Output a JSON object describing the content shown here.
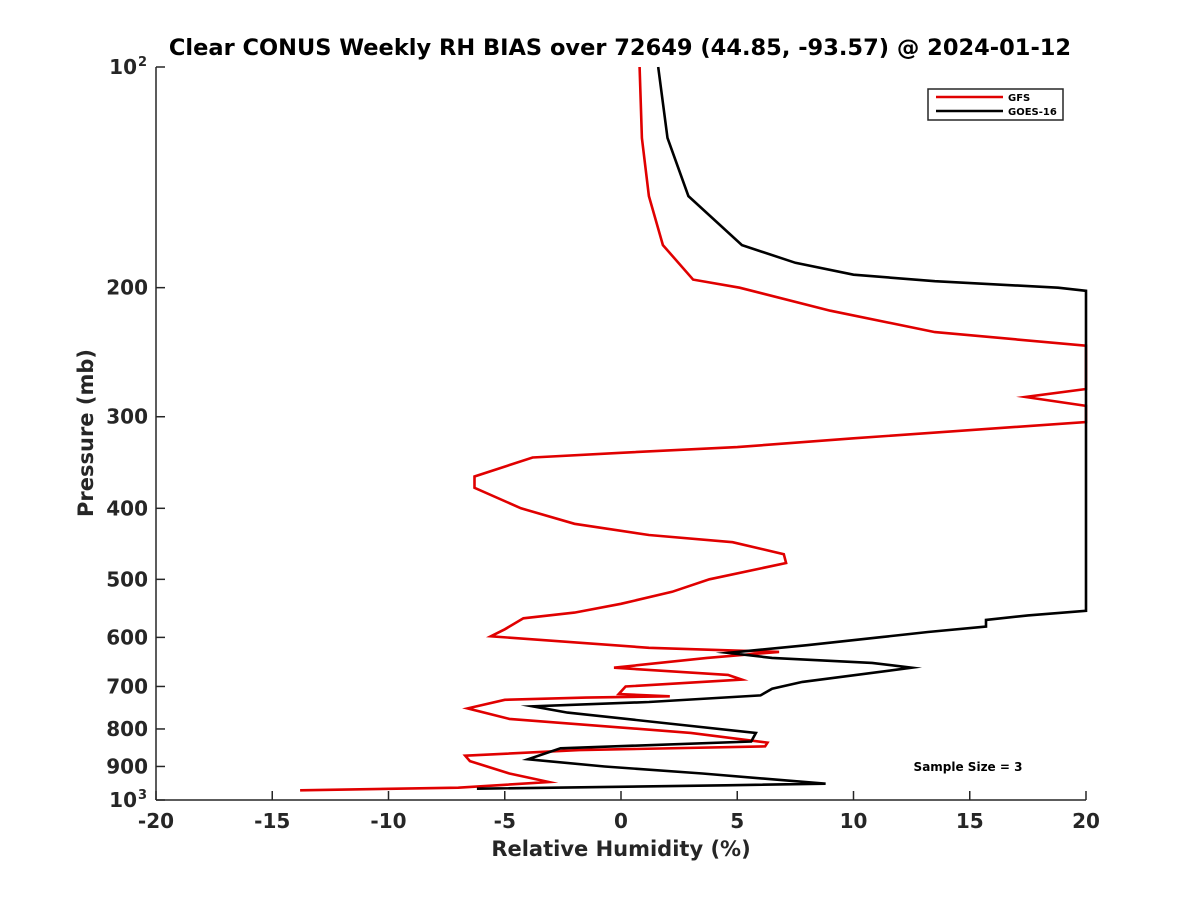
{
  "chart_data": {
    "type": "line",
    "title": "Clear CONUS Weekly RH BIAS over 72649 (44.85, -93.57) @ 2024-01-12",
    "xlabel": "Relative Humidity (%)",
    "ylabel": "Pressure (mb)",
    "xlim": [
      -20,
      20
    ],
    "ylim": [
      100,
      1000
    ],
    "y_scale": "log",
    "y_reversed": true,
    "grid": false,
    "legend_position": "top-right",
    "annotation": "Sample Size = 3",
    "x_ticks": [
      -20,
      -15,
      -10,
      -5,
      0,
      5,
      10,
      15,
      20
    ],
    "x_tick_labels": [
      "-20",
      "-15",
      "-10",
      "-5",
      "0",
      "5",
      "10",
      "15",
      "20"
    ],
    "y_ticks": [
      100,
      200,
      300,
      400,
      500,
      600,
      700,
      800,
      900,
      1000
    ],
    "y_tick_labels": [
      {
        "base": "10",
        "exp": "2"
      },
      {
        "base": "200",
        "exp": ""
      },
      {
        "base": "300",
        "exp": ""
      },
      {
        "base": "400",
        "exp": ""
      },
      {
        "base": "500",
        "exp": ""
      },
      {
        "base": "600",
        "exp": ""
      },
      {
        "base": "700",
        "exp": ""
      },
      {
        "base": "800",
        "exp": ""
      },
      {
        "base": "900",
        "exp": ""
      },
      {
        "base": "10",
        "exp": "3"
      }
    ],
    "series": [
      {
        "name": "GFS",
        "color": "#e00000",
        "points": [
          [
            0.8,
            100
          ],
          [
            0.9,
            125
          ],
          [
            1.2,
            150
          ],
          [
            1.8,
            175
          ],
          [
            3.1,
            195
          ],
          [
            5.1,
            200
          ],
          [
            9.0,
            215
          ],
          [
            13.5,
            230
          ],
          [
            20.0,
            240
          ],
          [
            20.0,
            275
          ],
          [
            17.4,
            282
          ],
          [
            20.0,
            290
          ],
          [
            20.0,
            305
          ],
          [
            10.0,
            321
          ],
          [
            5.0,
            330
          ],
          [
            0.0,
            336
          ],
          [
            -3.8,
            341
          ],
          [
            -6.3,
            362
          ],
          [
            -6.3,
            375
          ],
          [
            -4.3,
            400
          ],
          [
            -2.0,
            420
          ],
          [
            1.2,
            435
          ],
          [
            4.8,
            445
          ],
          [
            7.0,
            462
          ],
          [
            7.1,
            475
          ],
          [
            3.8,
            500
          ],
          [
            2.2,
            520
          ],
          [
            0.0,
            540
          ],
          [
            -2.0,
            555
          ],
          [
            -4.2,
            565
          ],
          [
            -5.0,
            585
          ],
          [
            -5.6,
            598
          ],
          [
            1.2,
            620
          ],
          [
            6.8,
            628
          ],
          [
            3.7,
            640
          ],
          [
            -0.3,
            660
          ],
          [
            4.6,
            675
          ],
          [
            5.2,
            685
          ],
          [
            0.2,
            700
          ],
          [
            -0.1,
            717
          ],
          [
            2.1,
            722
          ],
          [
            -1.5,
            725
          ],
          [
            -5.0,
            730
          ],
          [
            -6.6,
            750
          ],
          [
            -4.8,
            775
          ],
          [
            3.0,
            810
          ],
          [
            6.3,
            835
          ],
          [
            6.2,
            845
          ],
          [
            -1.8,
            855
          ],
          [
            -6.7,
            870
          ],
          [
            -6.5,
            885
          ],
          [
            -4.8,
            920
          ],
          [
            -3.1,
            945
          ],
          [
            -7.0,
            962
          ],
          [
            -13.8,
            970
          ]
        ]
      },
      {
        "name": "GOES-16",
        "color": "#000000",
        "points": [
          [
            1.6,
            100
          ],
          [
            2.0,
            125
          ],
          [
            2.9,
            150
          ],
          [
            5.2,
            175
          ],
          [
            7.5,
            185
          ],
          [
            10.0,
            192
          ],
          [
            13.5,
            196
          ],
          [
            18.8,
            200
          ],
          [
            20.0,
            202
          ],
          [
            20.0,
            552
          ],
          [
            17.5,
            560
          ],
          [
            15.7,
            568
          ],
          [
            15.7,
            580
          ],
          [
            13.2,
            590
          ],
          [
            8.0,
            615
          ],
          [
            4.6,
            630
          ],
          [
            6.5,
            640
          ],
          [
            10.8,
            650
          ],
          [
            12.5,
            660
          ],
          [
            7.8,
            690
          ],
          [
            6.5,
            705
          ],
          [
            6.0,
            720
          ],
          [
            1.2,
            735
          ],
          [
            -3.8,
            745
          ],
          [
            -2.3,
            760
          ],
          [
            5.8,
            810
          ],
          [
            5.6,
            832
          ],
          [
            -2.6,
            850
          ],
          [
            -4.0,
            880
          ],
          [
            -0.7,
            900
          ],
          [
            3.5,
            920
          ],
          [
            8.8,
            950
          ],
          [
            4.5,
            955
          ],
          [
            -6.2,
            965
          ]
        ]
      }
    ]
  }
}
